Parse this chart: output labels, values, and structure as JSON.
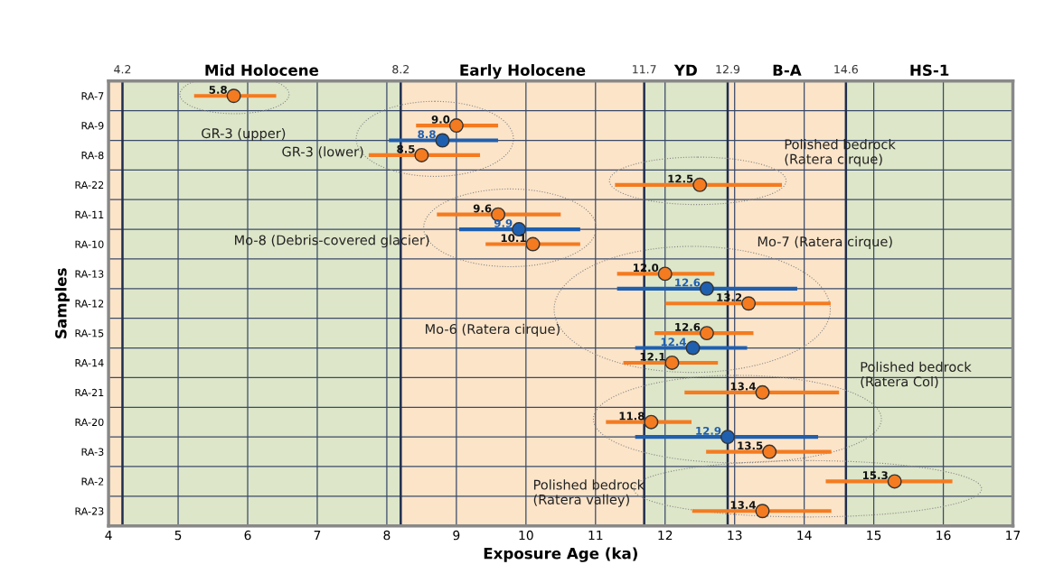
{
  "chart_data": {
    "type": "scatter",
    "orientation": "horizontal",
    "categories": [
      "RA-7",
      null,
      "RA-9",
      null,
      "RA-8",
      null,
      "RA-22",
      null,
      "RA-11",
      null,
      "RA-10",
      null,
      "RA-13",
      null,
      "RA-12",
      null,
      "RA-15",
      null,
      "RA-14",
      null,
      "RA-21",
      null,
      "RA-20",
      null,
      "RA-3",
      null,
      "RA-2",
      null,
      "RA-23"
    ],
    "series": [
      {
        "color": "#f47b20",
        "values": [
          5.8,
          null,
          9.0,
          null,
          8.5,
          null,
          12.5,
          null,
          9.6,
          null,
          10.1,
          null,
          12.0,
          null,
          13.2,
          null,
          12.6,
          null,
          12.1,
          null,
          13.4,
          null,
          11.8,
          null,
          13.5,
          null,
          15.3,
          null,
          13.4
        ],
        "errors": [
          [
            5.23,
            6.41
          ],
          null,
          [
            8.42,
            9.6
          ],
          null,
          [
            7.74,
            9.34
          ],
          null,
          [
            11.28,
            13.68
          ],
          null,
          [
            8.72,
            10.5
          ],
          null,
          [
            9.42,
            10.78
          ],
          null,
          [
            11.31,
            12.71
          ],
          null,
          [
            12.0,
            14.38
          ],
          null,
          [
            11.85,
            13.27
          ],
          null,
          [
            11.4,
            12.76
          ],
          null,
          [
            12.28,
            14.5
          ],
          null,
          [
            11.15,
            12.38
          ],
          null,
          [
            12.59,
            14.39
          ],
          null,
          [
            14.31,
            16.13
          ],
          null,
          [
            12.39,
            14.39
          ]
        ],
        "value_labels": [
          "5.8",
          null,
          "9.0",
          null,
          "8.5",
          null,
          "12.5",
          null,
          "9.6",
          null,
          "10.1",
          null,
          "12.0",
          null,
          "13.2",
          null,
          "12.6",
          null,
          "12.1",
          null,
          "13.4",
          null,
          "11.8",
          null,
          "13.5",
          null,
          "15.3",
          null,
          "13.4"
        ]
      },
      {
        "color": "#1f5fb0",
        "values": [
          null,
          null,
          null,
          8.8,
          null,
          null,
          null,
          null,
          null,
          9.9,
          null,
          null,
          null,
          12.6,
          null,
          null,
          null,
          12.4,
          null,
          null,
          null,
          null,
          null,
          12.9,
          null,
          null,
          null,
          null,
          null
        ],
        "errors": [
          null,
          null,
          null,
          [
            8.03,
            9.6
          ],
          null,
          null,
          null,
          null,
          null,
          [
            9.04,
            10.78
          ],
          null,
          null,
          null,
          [
            11.31,
            13.9
          ],
          null,
          null,
          null,
          [
            11.57,
            13.18
          ],
          null,
          null,
          null,
          null,
          null,
          [
            11.57,
            14.2
          ],
          null,
          null,
          null,
          null,
          null
        ],
        "value_labels": [
          null,
          null,
          null,
          "8.8",
          null,
          null,
          null,
          null,
          null,
          "9.9",
          null,
          null,
          null,
          "12.6",
          null,
          null,
          null,
          "12.4",
          null,
          null,
          null,
          null,
          null,
          "12.9",
          null,
          null,
          null,
          null,
          null
        ]
      }
    ],
    "xlim": [
      4,
      17
    ],
    "xticks": [
      4,
      5,
      6,
      7,
      8,
      9,
      10,
      11,
      12,
      13,
      14,
      15,
      16,
      17
    ],
    "xlabel": "Exposure Age (ka)",
    "ylabel": "Samples",
    "marker": "circle",
    "grid": true,
    "bands": [
      {
        "axis": "x",
        "from": 4,
        "to": 4.2,
        "label": null,
        "color": "#fce4c8"
      },
      {
        "axis": "x",
        "from": 4.2,
        "to": 8.2,
        "label": "Mid Holocene",
        "color": "#dde6c8"
      },
      {
        "axis": "x",
        "from": 8.2,
        "to": 11.7,
        "label": "Early Holocene",
        "color": "#fce4c8"
      },
      {
        "axis": "x",
        "from": 11.7,
        "to": 12.9,
        "label": "YD",
        "color": "#dde6c8"
      },
      {
        "axis": "x",
        "from": 12.9,
        "to": 14.6,
        "label": "B-A",
        "color": "#fce4c8"
      },
      {
        "axis": "x",
        "from": 14.6,
        "to": 17,
        "label": "HS-1",
        "color": "#dde6c8"
      }
    ],
    "ref_lines": [
      {
        "axis": "x",
        "value": 4.2,
        "label": "4.2",
        "color": "#1f2d4f"
      },
      {
        "axis": "x",
        "value": 8.2,
        "label": "8.2",
        "color": "#1f2d4f"
      },
      {
        "axis": "x",
        "value": 11.7,
        "label": "11.7",
        "color": "#1f2d4f"
      },
      {
        "axis": "x",
        "value": 12.9,
        "label": "12.9",
        "color": "#1f2d4f"
      },
      {
        "axis": "x",
        "value": 14.6,
        "label": "14.6",
        "color": "#1f2d4f"
      }
    ],
    "annotations": [
      "GR-3 (upper)",
      "GR-3 (lower)",
      "Polished bedrock\n(Ratera cirque)",
      "Mo-8 (Debris-covered glacier)",
      "Mo-7 (Ratera cirque)",
      "Mo-6 (Ratera cirque)",
      "Polished bedrock\n(Ratera Col)",
      "Polished bedrock\n(Ratera valley)"
    ]
  }
}
